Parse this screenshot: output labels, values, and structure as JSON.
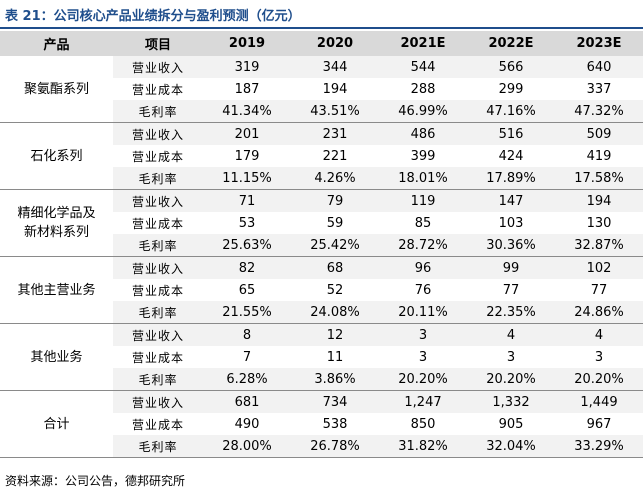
{
  "title": "表 21：公司核心产品业绩拆分与盈利预测（亿元）",
  "headers": [
    "产品",
    "项目",
    "2019",
    "2020",
    "2021E",
    "2022E",
    "2023E"
  ],
  "groups": [
    {
      "name": [
        "聚氨酯系列"
      ],
      "rows": [
        {
          "item": "营业收入",
          "values": [
            "319",
            "344",
            "544",
            "566",
            "640"
          ]
        },
        {
          "item": "营业成本",
          "values": [
            "187",
            "194",
            "288",
            "299",
            "337"
          ]
        },
        {
          "item": "毛利率",
          "values": [
            "41.34%",
            "43.51%",
            "46.99%",
            "47.16%",
            "47.32%"
          ]
        }
      ]
    },
    {
      "name": [
        "石化系列"
      ],
      "rows": [
        {
          "item": "营业收入",
          "values": [
            "201",
            "231",
            "486",
            "516",
            "509"
          ]
        },
        {
          "item": "营业成本",
          "values": [
            "179",
            "221",
            "399",
            "424",
            "419"
          ]
        },
        {
          "item": "毛利率",
          "values": [
            "11.15%",
            "4.26%",
            "18.01%",
            "17.89%",
            "17.58%"
          ]
        }
      ]
    },
    {
      "name": [
        "精细化学品及",
        "新材料系列"
      ],
      "rows": [
        {
          "item": "营业收入",
          "values": [
            "71",
            "79",
            "119",
            "147",
            "194"
          ]
        },
        {
          "item": "营业成本",
          "values": [
            "53",
            "59",
            "85",
            "103",
            "130"
          ]
        },
        {
          "item": "毛利率",
          "values": [
            "25.63%",
            "25.42%",
            "28.72%",
            "30.36%",
            "32.87%"
          ]
        }
      ]
    },
    {
      "name": [
        "其他主营业务"
      ],
      "rows": [
        {
          "item": "营业收入",
          "values": [
            "82",
            "68",
            "96",
            "99",
            "102"
          ]
        },
        {
          "item": "营业成本",
          "values": [
            "65",
            "52",
            "76",
            "77",
            "77"
          ]
        },
        {
          "item": "毛利率",
          "values": [
            "21.55%",
            "24.08%",
            "20.11%",
            "22.35%",
            "24.86%"
          ]
        }
      ]
    },
    {
      "name": [
        "其他业务"
      ],
      "rows": [
        {
          "item": "营业收入",
          "values": [
            "8",
            "12",
            "3",
            "4",
            "4"
          ]
        },
        {
          "item": "营业成本",
          "values": [
            "7",
            "11",
            "3",
            "3",
            "3"
          ]
        },
        {
          "item": "毛利率",
          "values": [
            "6.28%",
            "3.86%",
            "20.20%",
            "20.20%",
            "20.20%"
          ]
        }
      ]
    },
    {
      "name": [
        "合计"
      ],
      "rows": [
        {
          "item": "营业收入",
          "values": [
            "681",
            "734",
            "1,247",
            "1,332",
            "1,449"
          ]
        },
        {
          "item": "营业成本",
          "values": [
            "490",
            "538",
            "850",
            "905",
            "967"
          ]
        },
        {
          "item": "毛利率",
          "values": [
            "28.00%",
            "26.78%",
            "31.82%",
            "32.04%",
            "33.29%"
          ]
        }
      ]
    }
  ],
  "source": "资料来源：公司公告，德邦研究所"
}
